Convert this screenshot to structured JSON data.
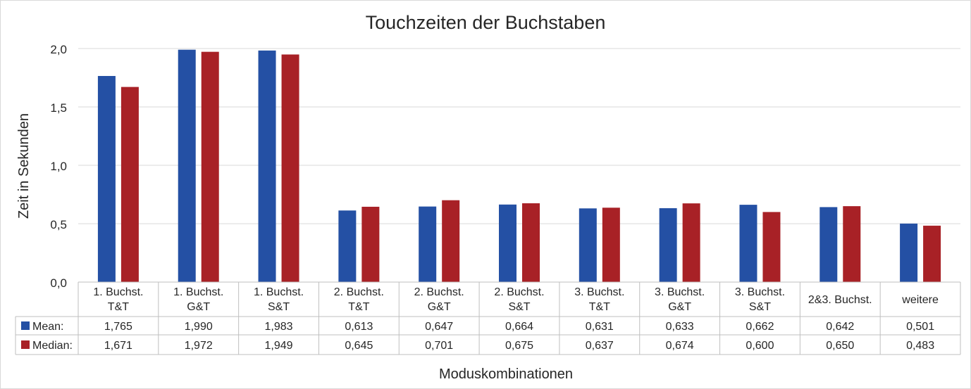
{
  "chart_data": {
    "type": "bar",
    "title": "Touchzeiten der Buchstaben",
    "xlabel": "Moduskombinationen",
    "ylabel": "Zeit in Sekunden",
    "ylim": [
      0,
      2.0
    ],
    "yticks": [
      "0,0",
      "0,5",
      "1,0",
      "1,5",
      "2,0"
    ],
    "ytick_values": [
      0,
      0.5,
      1.0,
      1.5,
      2.0
    ],
    "grid": true,
    "legend": "data-table-left",
    "categories": [
      [
        "1. Buchst.",
        "T&T"
      ],
      [
        "1. Buchst.",
        "G&T"
      ],
      [
        "1. Buchst.",
        "S&T"
      ],
      [
        "2. Buchst.",
        "T&T"
      ],
      [
        "2. Buchst.",
        "G&T"
      ],
      [
        "2. Buchst.",
        "S&T"
      ],
      [
        "3. Buchst.",
        "T&T"
      ],
      [
        "3. Buchst.",
        "G&T"
      ],
      [
        "3. Buchst.",
        "S&T"
      ],
      [
        "2&3. Buchst."
      ],
      [
        "weitere"
      ]
    ],
    "series": [
      {
        "name": "Mean:",
        "color": "#2450a4",
        "values": [
          1.765,
          1.99,
          1.983,
          0.613,
          0.647,
          0.664,
          0.631,
          0.633,
          0.662,
          0.642,
          0.501
        ],
        "labels": [
          "1,765",
          "1,990",
          "1,983",
          "0,613",
          "0,647",
          "0,664",
          "0,631",
          "0,633",
          "0,662",
          "0,642",
          "0,501"
        ]
      },
      {
        "name": "Median:",
        "color": "#a82126",
        "values": [
          1.671,
          1.972,
          1.949,
          0.645,
          0.701,
          0.675,
          0.637,
          0.674,
          0.6,
          0.65,
          0.483
        ],
        "labels": [
          "1,671",
          "1,972",
          "1,949",
          "0,645",
          "0,701",
          "0,675",
          "0,637",
          "0,674",
          "0,600",
          "0,650",
          "0,483"
        ]
      }
    ]
  }
}
